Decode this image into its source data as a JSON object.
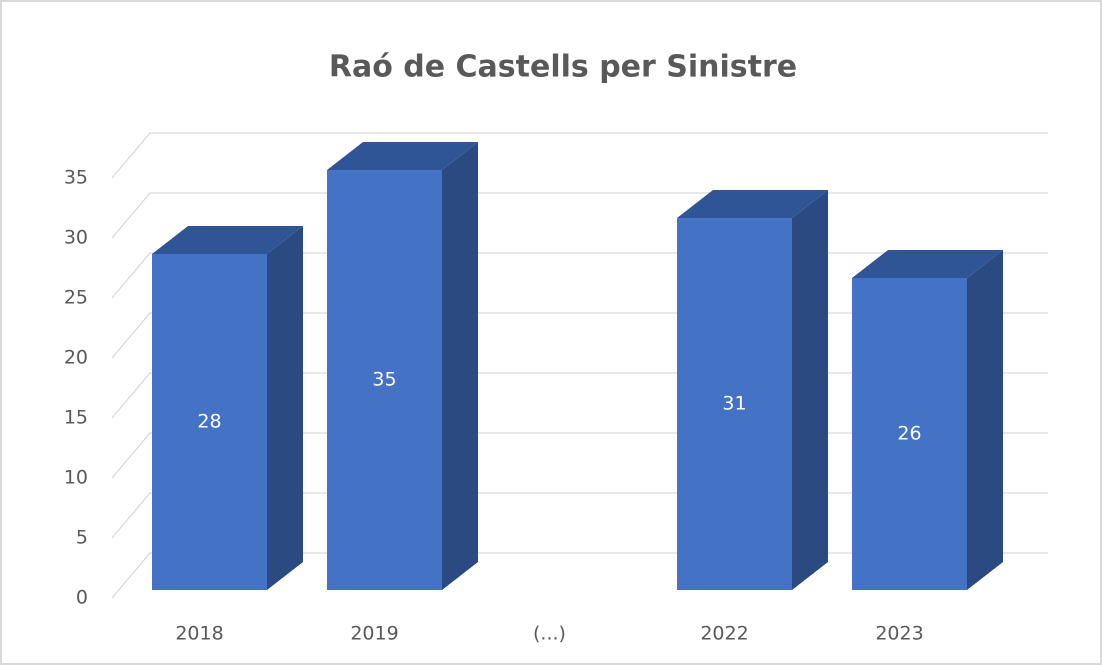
{
  "chart_data": {
    "type": "bar3d",
    "title": "Raó de Castells per Sinistre",
    "categories": [
      "2018",
      "2019",
      "(...)",
      "2022",
      "2023"
    ],
    "values": [
      28,
      35,
      null,
      31,
      26
    ],
    "color": "#4472c4",
    "top_color": "#2f5597",
    "side_color": "#2b4a82",
    "ylim": [
      0,
      35
    ],
    "yticks": [
      0,
      5,
      10,
      15,
      20,
      25,
      30,
      35
    ],
    "grid": true
  }
}
